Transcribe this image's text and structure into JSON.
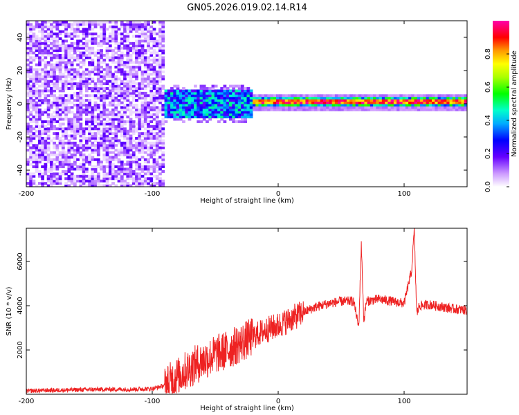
{
  "chart_data": [
    {
      "type": "heatmap",
      "title": "GN05.2026.019.02.14.R14",
      "xlabel": "Height of straight line (km)",
      "ylabel": "Frequency (Hz)",
      "xlim": [
        -200,
        150
      ],
      "ylim": [
        -50,
        50
      ],
      "x_ticks": [
        "-200",
        "-100",
        "0",
        "100"
      ],
      "x_tick_values": [
        -200,
        -100,
        0,
        100
      ],
      "y_ticks": [
        "-40",
        "-20",
        "0",
        "20",
        "40"
      ],
      "y_tick_values": [
        -40,
        -20,
        0,
        20,
        40
      ],
      "colorbar": {
        "label": "Normalized spectral amplitude",
        "range": [
          0,
          1
        ],
        "ticks": [
          "0.0",
          "0.2",
          "0.4",
          "0.6",
          "0.8"
        ],
        "tick_values": [
          0.0,
          0.2,
          0.4,
          0.6,
          0.8
        ]
      },
      "features": [
        {
          "name": "noise region",
          "x_range": [
            -200,
            -90
          ],
          "freq_range": [
            -50,
            50
          ],
          "amplitude": 0.05
        },
        {
          "name": "emerging signal",
          "x_range": [
            -90,
            -20
          ],
          "freq_center": 0,
          "freq_halfwidth": 8,
          "amplitude": 0.35
        },
        {
          "name": "strong tone",
          "x_range": [
            -20,
            150
          ],
          "freq_center": 1,
          "freq_halfwidth": 3,
          "amplitude": 0.95
        }
      ]
    },
    {
      "type": "line",
      "xlabel": "Height of straight line (km)",
      "ylabel": "SNR (10 * v/v)",
      "xlim": [
        -200,
        150
      ],
      "ylim": [
        0,
        7500
      ],
      "x_ticks": [
        "-200",
        "-100",
        "0",
        "100"
      ],
      "x_tick_values": [
        -200,
        -100,
        0,
        100
      ],
      "y_ticks": [
        "2000",
        "4000",
        "6000"
      ],
      "y_tick_values": [
        2000,
        4000,
        6000
      ],
      "color": "#ee2222",
      "series": [
        {
          "name": "SNR",
          "x": [
            -200,
            -180,
            -160,
            -140,
            -120,
            -100,
            -90,
            -80,
            -70,
            -60,
            -50,
            -40,
            -30,
            -20,
            -10,
            0,
            10,
            20,
            30,
            40,
            50,
            60,
            64,
            66,
            68,
            70,
            80,
            90,
            100,
            106,
            108,
            110,
            112,
            120,
            130,
            140,
            150
          ],
          "y": [
            150,
            180,
            200,
            220,
            220,
            250,
            400,
            800,
            1200,
            1500,
            1800,
            2000,
            2300,
            2600,
            2900,
            3100,
            3400,
            3700,
            3950,
            4100,
            4200,
            4200,
            3000,
            6800,
            3300,
            4200,
            4300,
            4200,
            4100,
            5600,
            7400,
            3600,
            4000,
            4050,
            3950,
            3850,
            3800
          ]
        }
      ],
      "noise_amplitude": [
        {
          "x_range": [
            -200,
            -90
          ],
          "amp": 100
        },
        {
          "x_range": [
            -90,
            -20
          ],
          "amp": 900
        },
        {
          "x_range": [
            -20,
            20
          ],
          "amp": 600
        },
        {
          "x_range": [
            20,
            150
          ],
          "amp": 220
        }
      ]
    }
  ]
}
